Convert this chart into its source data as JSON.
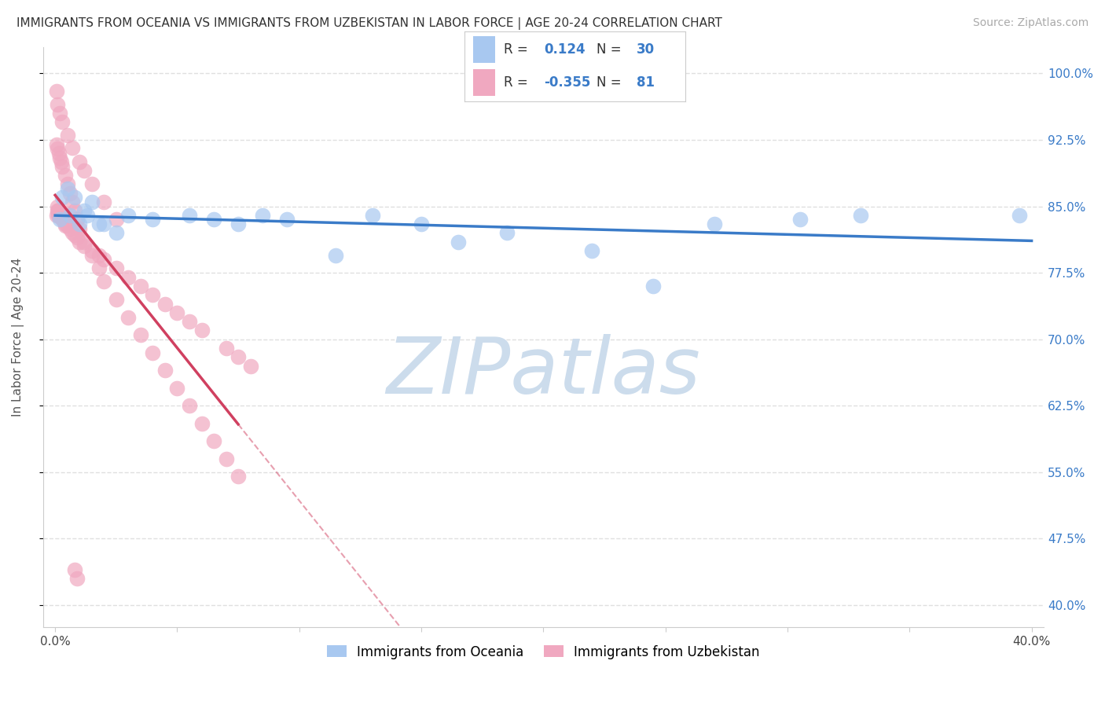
{
  "title": "IMMIGRANTS FROM OCEANIA VS IMMIGRANTS FROM UZBEKISTAN IN LABOR FORCE | AGE 20-24 CORRELATION CHART",
  "source": "Source: ZipAtlas.com",
  "ylabel": "In Labor Force | Age 20-24",
  "xlim": [
    -0.005,
    0.405
  ],
  "ylim": [
    0.375,
    1.03
  ],
  "yticks": [
    0.4,
    0.475,
    0.55,
    0.625,
    0.7,
    0.775,
    0.85,
    0.925,
    1.0
  ],
  "ytick_labels": [
    "40.0%",
    "47.5%",
    "55.0%",
    "62.5%",
    "70.0%",
    "77.5%",
    "85.0%",
    "92.5%",
    "100.0%"
  ],
  "xticks": [
    0.0,
    0.05,
    0.1,
    0.15,
    0.2,
    0.25,
    0.3,
    0.35,
    0.4
  ],
  "xtick_labels": [
    "0.0%",
    "",
    "",
    "",
    "",
    "",
    "",
    "",
    "40.0%"
  ],
  "oceania_color": "#a8c8f0",
  "uzbekistan_color": "#f0a8c0",
  "trend_oceania_color": "#3a7bc8",
  "trend_uzbekistan_color": "#d04060",
  "R_oceania": 0.124,
  "N_oceania": 30,
  "R_uzbekistan": -0.355,
  "N_uzbekistan": 81,
  "watermark": "ZIPatlas",
  "watermark_color": "#ccdcec",
  "background_color": "#ffffff",
  "grid_color": "#e0e0e0",
  "title_fontsize": 11,
  "axis_label_fontsize": 11,
  "tick_label_color_right": "#3a7bc8",
  "oceania_x": [
    0.002,
    0.003,
    0.005,
    0.006,
    0.008,
    0.01,
    0.012,
    0.013,
    0.015,
    0.018,
    0.02,
    0.025,
    0.03,
    0.04,
    0.055,
    0.065,
    0.075,
    0.085,
    0.095,
    0.115,
    0.13,
    0.15,
    0.165,
    0.185,
    0.22,
    0.245,
    0.27,
    0.305,
    0.33,
    0.395
  ],
  "oceania_y": [
    0.835,
    0.86,
    0.87,
    0.84,
    0.86,
    0.83,
    0.845,
    0.84,
    0.855,
    0.83,
    0.83,
    0.82,
    0.84,
    0.835,
    0.84,
    0.835,
    0.83,
    0.84,
    0.835,
    0.795,
    0.84,
    0.83,
    0.81,
    0.82,
    0.8,
    0.76,
    0.83,
    0.835,
    0.84,
    0.84
  ],
  "uzbekistan_x": [
    0.0005,
    0.0008,
    0.001,
    0.0012,
    0.0014,
    0.0015,
    0.0016,
    0.0018,
    0.002,
    0.0022,
    0.0024,
    0.0026,
    0.003,
    0.0032,
    0.0035,
    0.004,
    0.0042,
    0.005,
    0.006,
    0.007,
    0.008,
    0.009,
    0.01,
    0.012,
    0.015,
    0.018,
    0.02,
    0.025,
    0.03,
    0.035,
    0.04,
    0.045,
    0.05,
    0.055,
    0.06,
    0.07,
    0.075,
    0.08,
    0.0005,
    0.001,
    0.0015,
    0.002,
    0.0025,
    0.003,
    0.004,
    0.005,
    0.006,
    0.007,
    0.008,
    0.009,
    0.01,
    0.012,
    0.015,
    0.018,
    0.02,
    0.025,
    0.03,
    0.035,
    0.04,
    0.045,
    0.05,
    0.055,
    0.06,
    0.065,
    0.07,
    0.075,
    0.008,
    0.009,
    0.0005,
    0.001,
    0.002,
    0.003,
    0.005,
    0.007,
    0.01,
    0.012,
    0.015,
    0.02,
    0.025
  ],
  "uzbekistan_y": [
    0.84,
    0.85,
    0.845,
    0.845,
    0.84,
    0.845,
    0.84,
    0.84,
    0.84,
    0.84,
    0.84,
    0.838,
    0.835,
    0.835,
    0.835,
    0.83,
    0.828,
    0.828,
    0.825,
    0.82,
    0.818,
    0.815,
    0.81,
    0.805,
    0.8,
    0.795,
    0.79,
    0.78,
    0.77,
    0.76,
    0.75,
    0.74,
    0.73,
    0.72,
    0.71,
    0.69,
    0.68,
    0.67,
    0.92,
    0.915,
    0.91,
    0.905,
    0.9,
    0.895,
    0.885,
    0.875,
    0.865,
    0.855,
    0.845,
    0.835,
    0.825,
    0.81,
    0.795,
    0.78,
    0.765,
    0.745,
    0.725,
    0.705,
    0.685,
    0.665,
    0.645,
    0.625,
    0.605,
    0.585,
    0.565,
    0.545,
    0.44,
    0.43,
    0.98,
    0.965,
    0.955,
    0.945,
    0.93,
    0.916,
    0.9,
    0.89,
    0.875,
    0.855,
    0.835
  ],
  "trend_uzbek_solid_end_x": 0.075,
  "trend_uzbek_extrapolate_end_x": 0.18
}
